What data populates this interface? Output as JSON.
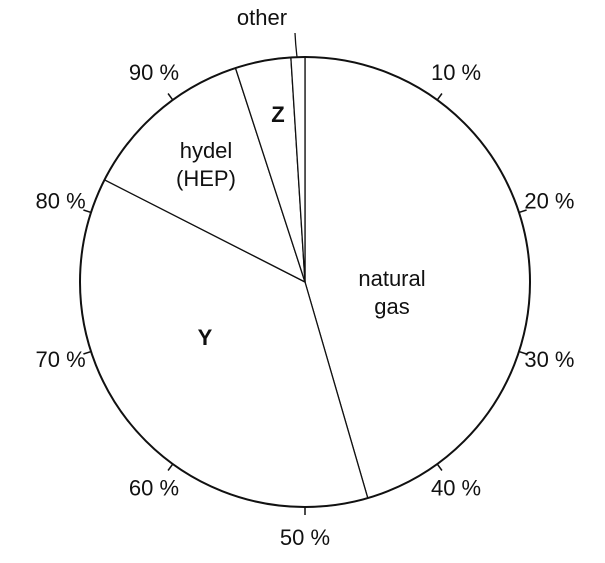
{
  "chart_data": {
    "type": "pie",
    "categories": [
      "natural gas",
      "Y",
      "hydel (HEP)",
      "Z",
      "other"
    ],
    "values": [
      45.5,
      37,
      12.5,
      4,
      1
    ],
    "color": "#ffffff",
    "ticks": [
      {
        "value": 10,
        "label": "10 %"
      },
      {
        "value": 20,
        "label": "20 %"
      },
      {
        "value": 30,
        "label": "30 %"
      },
      {
        "value": 40,
        "label": "40 %"
      },
      {
        "value": 50,
        "label": "50 %"
      },
      {
        "value": 60,
        "label": "60 %"
      },
      {
        "value": 70,
        "label": "70 %"
      },
      {
        "value": 80,
        "label": "80 %"
      },
      {
        "value": 90,
        "label": "90 %"
      }
    ]
  }
}
